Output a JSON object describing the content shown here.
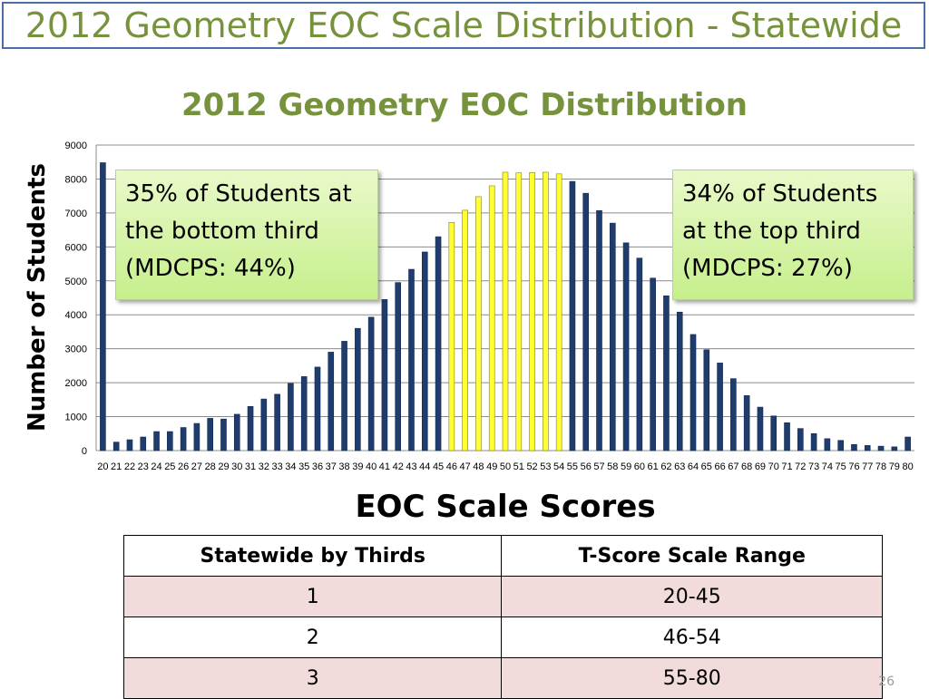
{
  "slide": {
    "title": "2012 Geometry EOC Scale Distribution - Statewide",
    "page_number": "26"
  },
  "callouts": {
    "left": [
      "35% of Students at",
      "the bottom third",
      "(MDCPS: 44%)"
    ],
    "right": [
      "34% of Students",
      "at the top third",
      "(MDCPS: 27%)"
    ]
  },
  "chart_data": {
    "type": "bar",
    "title": "2012 Geometry EOC Distribution",
    "xlabel": "EOC Scale Scores",
    "ylabel": "Number of Students",
    "ylim": [
      0,
      9000
    ],
    "yticks": [
      0,
      1000,
      2000,
      3000,
      4000,
      5000,
      6000,
      7000,
      8000,
      9000
    ],
    "grid": true,
    "categories": [
      "20",
      "21",
      "22",
      "23",
      "24",
      "25",
      "26",
      "27",
      "28",
      "29",
      "30",
      "31",
      "32",
      "33",
      "34",
      "35",
      "36",
      "37",
      "38",
      "39",
      "40",
      "41",
      "42",
      "43",
      "44",
      "45",
      "46",
      "47",
      "48",
      "49",
      "50",
      "51",
      "52",
      "53",
      "54",
      "55",
      "56",
      "57",
      "58",
      "59",
      "60",
      "61",
      "62",
      "63",
      "64",
      "65",
      "66",
      "67",
      "68",
      "69",
      "70",
      "71",
      "72",
      "73",
      "74",
      "75",
      "76",
      "77",
      "78",
      "79",
      "80"
    ],
    "values": [
      8480,
      250,
      320,
      400,
      560,
      560,
      680,
      800,
      950,
      930,
      1070,
      1300,
      1520,
      1660,
      1980,
      2180,
      2460,
      2900,
      3220,
      3600,
      3930,
      4450,
      4950,
      5340,
      5850,
      6300,
      6720,
      7080,
      7480,
      7800,
      8200,
      8180,
      8190,
      8200,
      8150,
      7930,
      7580,
      7070,
      6700,
      6120,
      5670,
      5080,
      4560,
      4080,
      3420,
      2970,
      2580,
      2120,
      1620,
      1280,
      1020,
      820,
      650,
      500,
      350,
      300,
      180,
      150,
      130,
      110,
      400
    ],
    "bar_colors": {
      "third_1": "#1f3c6e",
      "third_2": "#ffff33",
      "third_3": "#1f3c6e"
    },
    "highlight_range": [
      "46",
      "54"
    ]
  },
  "table": {
    "headers": [
      "Statewide by Thirds",
      "T-Score Scale Range"
    ],
    "rows": [
      {
        "third": "1",
        "range": "20-45"
      },
      {
        "third": "2",
        "range": "46-54"
      },
      {
        "third": "3",
        "range": "55-80"
      }
    ]
  }
}
